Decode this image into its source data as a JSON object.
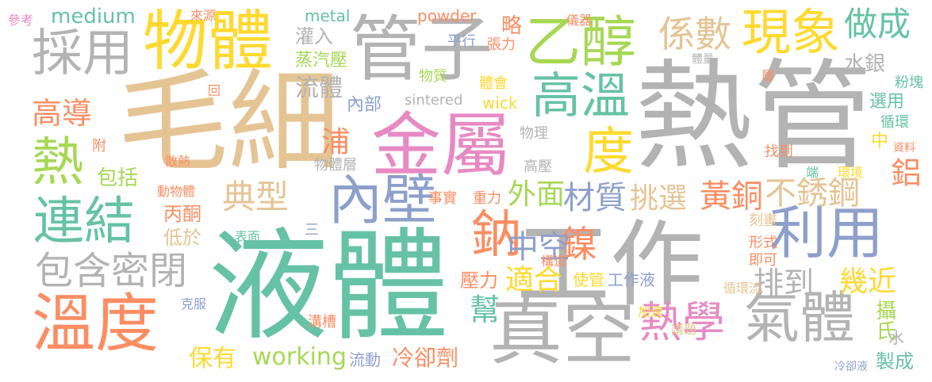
{
  "word_cloud": {
    "palette": {
      "green": "#66c2a5",
      "orange": "#fc8d62",
      "blue": "#8da0cb",
      "pink": "#e78ac3",
      "lime": "#a6d854",
      "yellow": "#ffd92f",
      "tan": "#e5c494",
      "gray": "#b3b3b3"
    },
    "words": [
      {
        "id": "w0",
        "text": "液體",
        "color": "#66c2a5"
      },
      {
        "id": "w1",
        "text": "毛細",
        "color": "#e5c494"
      },
      {
        "id": "w2",
        "text": "熱管",
        "color": "#b3b3b3"
      },
      {
        "id": "w3",
        "text": "工作",
        "color": "#b3b3b3"
      },
      {
        "id": "w4",
        "text": "金屬",
        "color": "#e78ac3"
      },
      {
        "id": "w5",
        "text": "管子",
        "color": "#b3b3b3"
      },
      {
        "id": "w6",
        "text": "物體",
        "color": "#ffd92f"
      },
      {
        "id": "w7",
        "text": "真空",
        "color": "#b3b3b3"
      },
      {
        "id": "w8",
        "text": "溫度",
        "color": "#fc8d62"
      },
      {
        "id": "w9",
        "text": "內壁",
        "color": "#8da0cb"
      },
      {
        "id": "w10",
        "text": "乙醇",
        "color": "#a6d854"
      },
      {
        "id": "w11",
        "text": "採用",
        "color": "#b3b3b3"
      },
      {
        "id": "w12",
        "text": "連結",
        "color": "#66c2a5"
      },
      {
        "id": "w13",
        "text": "利用",
        "color": "#8da0cb"
      },
      {
        "id": "w14",
        "text": "氣體",
        "color": "#b3b3b3"
      },
      {
        "id": "w15",
        "text": "現象",
        "color": "#ffd92f"
      },
      {
        "id": "w16",
        "text": "高溫",
        "color": "#66c2a5"
      },
      {
        "id": "w17",
        "text": "熱",
        "color": "#a6d854"
      },
      {
        "id": "w18",
        "text": "度",
        "color": "#ffd92f"
      },
      {
        "id": "w19",
        "text": "鈉",
        "color": "#fc8d62"
      },
      {
        "id": "w20",
        "text": "熱學",
        "color": "#e78ac3"
      },
      {
        "id": "w21",
        "text": "包含密閉",
        "color": "#b3b3b3"
      },
      {
        "id": "w22",
        "text": "鎳",
        "color": "#fc8d62"
      },
      {
        "id": "w23",
        "text": "典型",
        "color": "#e5c494"
      },
      {
        "id": "w24",
        "text": "係數",
        "color": "#e5c494"
      },
      {
        "id": "w25",
        "text": "做成",
        "color": "#66c2a5"
      },
      {
        "id": "w26",
        "text": "中空",
        "color": "#8da0cb"
      },
      {
        "id": "w27",
        "text": "黃銅",
        "color": "#fc8d62"
      },
      {
        "id": "w28",
        "text": "不銹鋼",
        "color": "#e5c494"
      },
      {
        "id": "w29",
        "text": "材質",
        "color": "#8da0cb"
      },
      {
        "id": "w30",
        "text": "外面",
        "color": "#a6d854"
      },
      {
        "id": "w31",
        "text": "挑選",
        "color": "#e5c494"
      },
      {
        "id": "w32",
        "text": "高導",
        "color": "#fc8d62"
      },
      {
        "id": "w33",
        "text": "排到",
        "color": "#b3b3b3"
      },
      {
        "id": "w34",
        "text": "適合",
        "color": "#ffd92f"
      },
      {
        "id": "w35",
        "text": "幾近",
        "color": "#ffd92f"
      },
      {
        "id": "w36",
        "text": "鋁",
        "color": "#fc8d62"
      },
      {
        "id": "w37",
        "text": "幫",
        "color": "#66c2a5"
      },
      {
        "id": "w38",
        "text": "浦",
        "color": "#fc8d62"
      },
      {
        "id": "w39",
        "text": "流體",
        "color": "#b3b3b3"
      },
      {
        "id": "w40",
        "text": "working",
        "color": "#a6d854"
      },
      {
        "id": "w41",
        "text": "冷卻劑",
        "color": "#fc8d62"
      },
      {
        "id": "w42",
        "text": "保有",
        "color": "#ffd92f"
      },
      {
        "id": "w43",
        "text": "攝氏",
        "color": "#a6d854"
      },
      {
        "id": "w44",
        "text": "製成",
        "color": "#66c2a5"
      },
      {
        "id": "w45",
        "text": "medium",
        "color": "#66c2a5"
      },
      {
        "id": "w46",
        "text": "metal",
        "color": "#66c2a5"
      },
      {
        "id": "w47",
        "text": "powder",
        "color": "#fc8d62"
      },
      {
        "id": "w48",
        "text": "sintered",
        "color": "#b3b3b3"
      },
      {
        "id": "w49",
        "text": "wick",
        "color": "#ffd92f"
      },
      {
        "id": "w50",
        "text": "灌入",
        "color": "#b3b3b3"
      },
      {
        "id": "w51",
        "text": "蒸汽壓",
        "color": "#a6d854"
      },
      {
        "id": "w52",
        "text": "內部",
        "color": "#8da0cb"
      },
      {
        "id": "w53",
        "text": "物質",
        "color": "#a6d854"
      },
      {
        "id": "w54",
        "text": "物理",
        "color": "#b3b3b3"
      },
      {
        "id": "w55",
        "text": "物體層",
        "color": "#b3b3b3"
      },
      {
        "id": "w56",
        "text": "高壓",
        "color": "#b3b3b3"
      },
      {
        "id": "w57",
        "text": "找到",
        "color": "#fc8d62"
      },
      {
        "id": "w58",
        "text": "丙酮",
        "color": "#fc8d62"
      },
      {
        "id": "w59",
        "text": "低於",
        "color": "#e5c494"
      },
      {
        "id": "w60",
        "text": "包括",
        "color": "#a6d854"
      },
      {
        "id": "w61",
        "text": "壓力",
        "color": "#fc8d62"
      },
      {
        "id": "w62",
        "text": "使管",
        "color": "#ffd92f"
      },
      {
        "id": "w63",
        "text": "工作液",
        "color": "#8da0cb"
      },
      {
        "id": "w64",
        "text": "形式",
        "color": "#fc8d62"
      },
      {
        "id": "w65",
        "text": "即可",
        "color": "#fc8d62"
      },
      {
        "id": "w66",
        "text": "刻畫",
        "color": "#e5c494"
      },
      {
        "id": "w67",
        "text": "循環流",
        "color": "#e5c494"
      },
      {
        "id": "w68",
        "text": "加速",
        "color": "#ffd92f"
      },
      {
        "id": "w69",
        "text": "議題",
        "color": "#e5c494"
      },
      {
        "id": "w70",
        "text": "流動",
        "color": "#8da0cb"
      },
      {
        "id": "w71",
        "text": "溝槽",
        "color": "#fc8d62"
      },
      {
        "id": "w72",
        "text": "克服",
        "color": "#8da0cb"
      },
      {
        "id": "w73",
        "text": "表面",
        "color": "#66c2a5"
      },
      {
        "id": "w74",
        "text": "動物體",
        "color": "#fc8d62"
      },
      {
        "id": "w75",
        "text": "散熱",
        "color": "#fc8d62"
      },
      {
        "id": "w76",
        "text": "事實",
        "color": "#fc8d62"
      },
      {
        "id": "w77",
        "text": "重力",
        "color": "#fc8d62"
      },
      {
        "id": "w78",
        "text": "構造",
        "color": "#fc8d62"
      },
      {
        "id": "w79",
        "text": "參考",
        "color": "#e78ac3"
      },
      {
        "id": "w80",
        "text": "來源",
        "color": "#fc8d62"
      },
      {
        "id": "w81",
        "text": "儀器",
        "color": "#fc8d62"
      },
      {
        "id": "w82",
        "text": "張力",
        "color": "#fc8d62"
      },
      {
        "id": "w83",
        "text": "平行",
        "color": "#8da0cb"
      },
      {
        "id": "w84",
        "text": "略",
        "color": "#fc8d62"
      },
      {
        "id": "w85",
        "text": "體會",
        "color": "#ffd92f"
      },
      {
        "id": "w86",
        "text": "體量",
        "color": "#b3b3b3"
      },
      {
        "id": "w87",
        "text": "層",
        "color": "#fc8d62"
      },
      {
        "id": "w88",
        "text": "粉塊",
        "color": "#66c2a5"
      },
      {
        "id": "w89",
        "text": "選用",
        "color": "#66c2a5"
      },
      {
        "id": "w90",
        "text": "循環",
        "color": "#66c2a5"
      },
      {
        "id": "w91",
        "text": "水銀",
        "color": "#b3b3b3"
      },
      {
        "id": "w92",
        "text": "中",
        "color": "#ffd92f"
      },
      {
        "id": "w93",
        "text": "資料",
        "color": "#fc8d62"
      },
      {
        "id": "w94",
        "text": "環境",
        "color": "#ffd92f"
      },
      {
        "id": "w95",
        "text": "端",
        "color": "#66c2a5"
      },
      {
        "id": "w96",
        "text": "水",
        "color": "#b3b3b3"
      },
      {
        "id": "w97",
        "text": "冷卻液",
        "color": "#8da0cb"
      },
      {
        "id": "w98",
        "text": "附",
        "color": "#fc8d62"
      },
      {
        "id": "w99",
        "text": "回",
        "color": "#fc8d62"
      },
      {
        "id": "w100",
        "text": "三",
        "color": "#8da0cb"
      }
    ]
  }
}
